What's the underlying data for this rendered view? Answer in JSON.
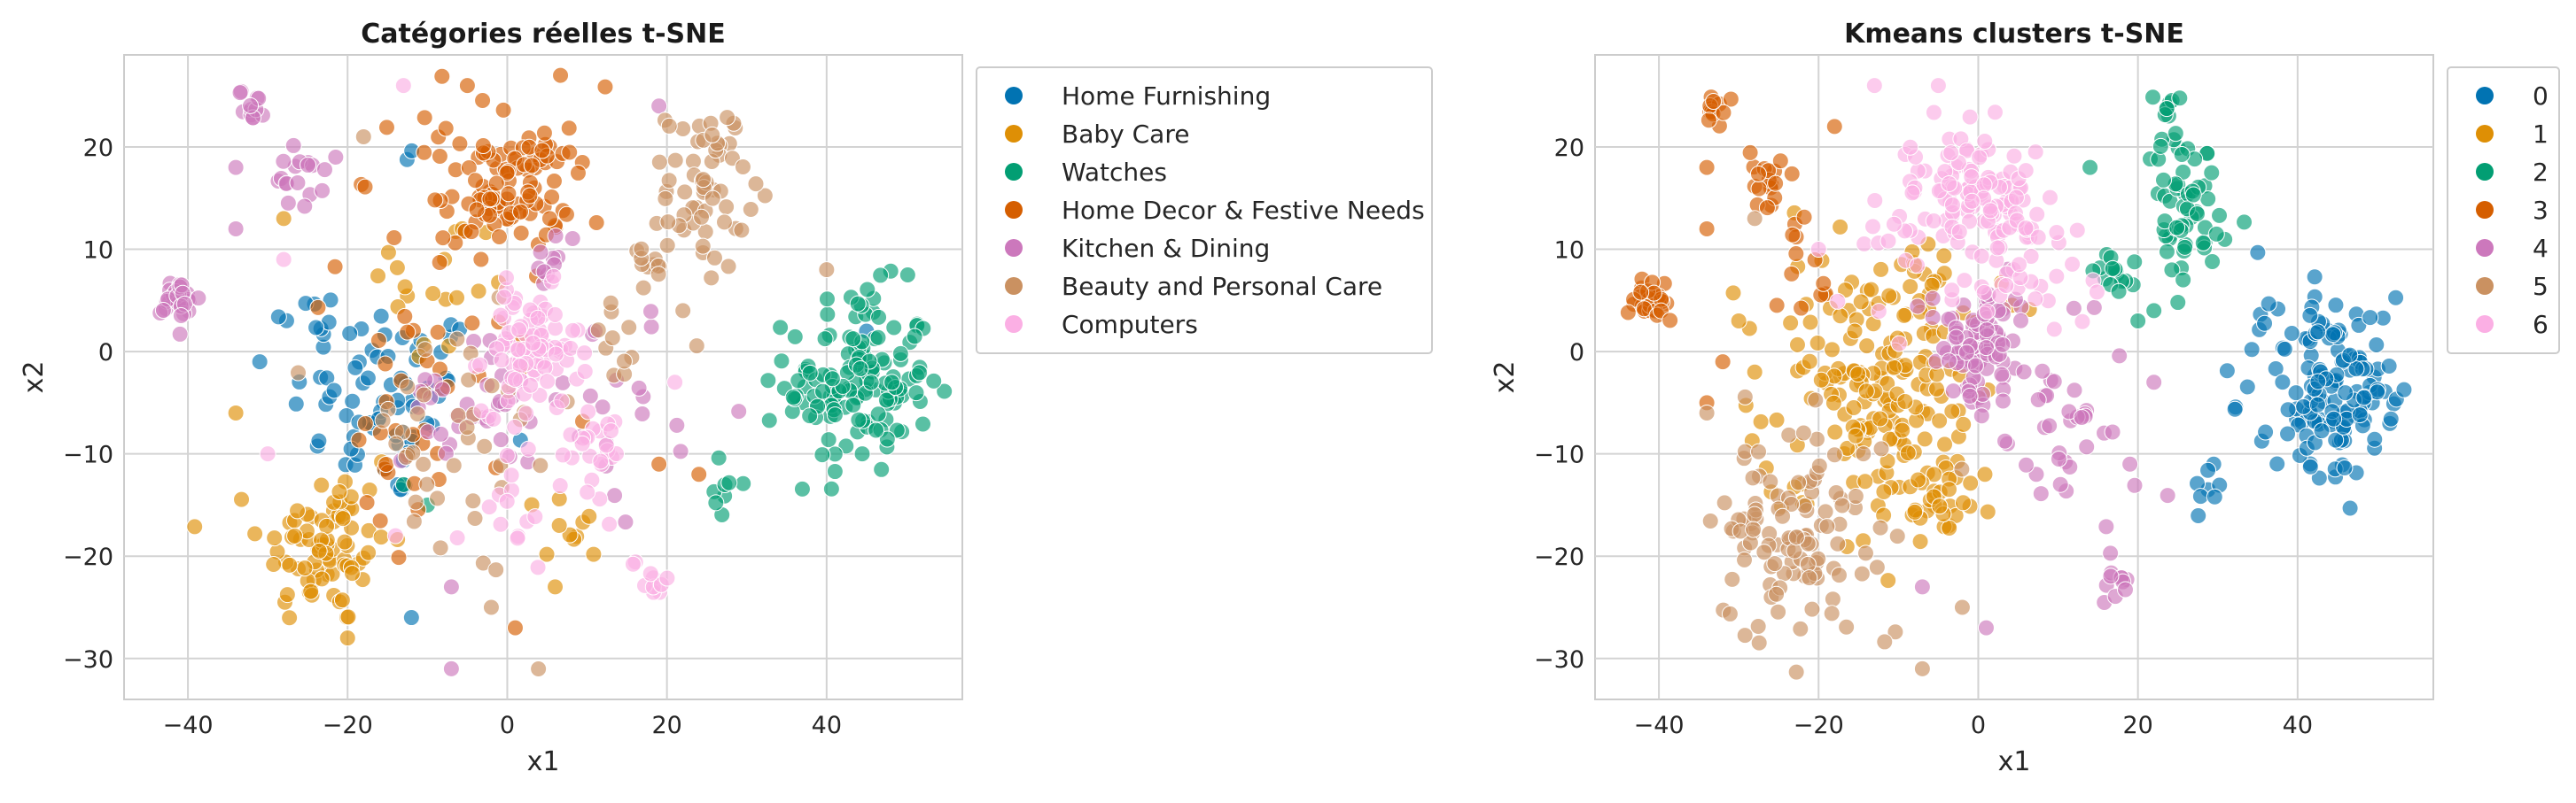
{
  "chart_data": [
    {
      "type": "scatter",
      "title": "Catégories réelles t-SNE",
      "xlabel": "x1",
      "ylabel": "x2",
      "xlim": [
        -48,
        57
      ],
      "ylim": [
        -34,
        29
      ],
      "xticks": [
        -40,
        -20,
        0,
        20,
        40
      ],
      "yticks": [
        -30,
        -20,
        -10,
        0,
        10,
        20
      ],
      "grid": true,
      "legend_position": "outside-right",
      "series": [
        {
          "name": "Home Furnishing",
          "color": "#0173b2",
          "clusters": [
            [
              -15,
              -5,
              6,
              5,
              70
            ],
            [
              -25,
              4,
              2,
              1.5,
              8
            ],
            [
              -12,
              19,
              0.5,
              0.5,
              2
            ]
          ],
          "points": [
            [
              -12,
              -26
            ],
            [
              45,
              2
            ],
            [
              -31,
              -1
            ]
          ]
        },
        {
          "name": "Baby Care",
          "color": "#de8f05",
          "clusters": [
            [
              -23,
              -19,
              4,
              4,
              80
            ],
            [
              -8,
              6,
              5,
              4,
              20
            ],
            [
              8,
              -17,
              2,
              2,
              10
            ]
          ],
          "points": [
            [
              -34,
              -6
            ],
            [
              -28,
              13
            ],
            [
              -20,
              -28
            ],
            [
              6,
              -23
            ]
          ]
        },
        {
          "name": "Watches",
          "color": "#029e73",
          "clusters": [
            [
              44,
              -3,
              4.5,
              4.5,
              140
            ],
            [
              28,
              -13,
              1,
              1.5,
              8
            ]
          ],
          "points": [
            [
              -13,
              -13
            ],
            [
              -10,
              -15
            ]
          ]
        },
        {
          "name": "Home Decor & Festive Needs",
          "color": "#d55e00",
          "clusters": [
            [
              0,
              16,
              4,
              3,
              90
            ],
            [
              -5,
              10,
              8,
              8,
              40
            ],
            [
              -12,
              -10,
              6,
              6,
              25
            ]
          ],
          "points": [
            [
              19,
              -11
            ],
            [
              24,
              -12
            ],
            [
              1,
              -27
            ],
            [
              -5,
              26
            ]
          ]
        },
        {
          "name": "Kitchen & Dining",
          "color": "#cc78bc",
          "clusters": [
            [
              -41,
              5,
              1.2,
              1.2,
              30
            ],
            [
              -32,
              24,
              0.8,
              0.8,
              12
            ],
            [
              -26,
              17,
              1.5,
              1.5,
              18
            ],
            [
              -5,
              -5,
              4,
              3,
              30
            ],
            [
              14,
              -5,
              5,
              6,
              20
            ],
            [
              6,
              9,
              1.5,
              1.5,
              10
            ]
          ],
          "points": [
            [
              -34,
              12
            ],
            [
              -34,
              18
            ],
            [
              -7,
              -31
            ],
            [
              -7,
              -23
            ],
            [
              19,
              24
            ],
            [
              11,
              2
            ]
          ]
        },
        {
          "name": "Beauty and Personal Care",
          "color": "#ca9161",
          "clusters": [
            [
              25,
              16,
              2.5,
              4,
              60
            ],
            [
              17,
              8,
              1.5,
              1.5,
              12
            ],
            [
              -7,
              -10,
              8,
              7,
              40
            ],
            [
              14,
              1,
              2,
              2,
              10
            ]
          ],
          "points": [
            [
              40,
              8
            ],
            [
              -18,
              21
            ],
            [
              22,
              4
            ],
            [
              -2,
              -25
            ]
          ]
        },
        {
          "name": "Computers",
          "color": "#fbafe4",
          "clusters": [
            [
              3,
              0,
              3,
              3,
              90
            ],
            [
              10,
              -9,
              3,
              3,
              25
            ],
            [
              18,
              -22,
              1.2,
              1.2,
              10
            ],
            [
              0,
              -15,
              3,
              3,
              15
            ]
          ],
          "points": [
            [
              -13,
              26
            ],
            [
              21,
              -3
            ],
            [
              -14,
              -18
            ],
            [
              -28,
              9
            ],
            [
              -30,
              -10
            ]
          ]
        }
      ]
    },
    {
      "type": "scatter",
      "title": "Kmeans clusters t-SNE",
      "xlabel": "x1",
      "ylabel": "x2",
      "xlim": [
        -48,
        57
      ],
      "ylim": [
        -34,
        29
      ],
      "xticks": [
        -40,
        -20,
        0,
        20,
        40
      ],
      "yticks": [
        -30,
        -20,
        -10,
        0,
        10,
        20
      ],
      "grid": true,
      "legend_position": "outside-right",
      "series": [
        {
          "name": "0",
          "color": "#0173b2",
          "clusters": [
            [
              44,
              -3,
              4.5,
              4.5,
              150
            ],
            [
              28,
              -13,
              1,
              1.5,
              8
            ]
          ],
          "points": []
        },
        {
          "name": "1",
          "color": "#de8f05",
          "clusters": [
            [
              -12,
              -3,
              6,
              7,
              200
            ],
            [
              -5,
              -15,
              3,
              2,
              20
            ]
          ],
          "points": [
            [
              -28,
              -2
            ],
            [
              -30,
              3
            ]
          ]
        },
        {
          "name": "2",
          "color": "#029e73",
          "clusters": [
            [
              26,
              15,
              2.5,
              4,
              60
            ],
            [
              17,
              8,
              1.5,
              1.5,
              15
            ],
            [
              24,
              24,
              1,
              1,
              8
            ]
          ],
          "points": [
            [
              14,
              18
            ],
            [
              20,
              3
            ],
            [
              22,
              4
            ]
          ]
        },
        {
          "name": "3",
          "color": "#d55e00",
          "clusters": [
            [
              -41,
              5,
              1.2,
              1.2,
              30
            ],
            [
              -33,
              24,
              0.8,
              0.8,
              12
            ],
            [
              -26,
              17,
              1.5,
              1.5,
              18
            ],
            [
              -22,
              8,
              2,
              2,
              12
            ]
          ],
          "points": [
            [
              -34,
              18
            ],
            [
              -34,
              12
            ],
            [
              -32,
              -1
            ],
            [
              -34,
              -5
            ],
            [
              -18,
              22
            ]
          ]
        },
        {
          "name": "4",
          "color": "#cc78bc",
          "clusters": [
            [
              0,
              0,
              3,
              3,
              90
            ],
            [
              10,
              -8,
              5,
              5,
              40
            ],
            [
              18,
              -22,
              1.2,
              1.2,
              10
            ]
          ],
          "points": [
            [
              1,
              -27
            ],
            [
              -7,
              -23
            ],
            [
              22,
              -3
            ],
            [
              19,
              -11
            ]
          ]
        },
        {
          "name": "5",
          "color": "#ca9161",
          "clusters": [
            [
              -22,
              -18,
              5,
              5,
              110
            ]
          ],
          "points": [
            [
              -34,
              -6
            ],
            [
              -28,
              13
            ],
            [
              -7,
              -31
            ],
            [
              -2,
              -25
            ]
          ]
        },
        {
          "name": "6",
          "color": "#fbafe4",
          "clusters": [
            [
              0,
              16,
              4,
              3,
              100
            ],
            [
              6,
              8,
              4,
              3,
              40
            ],
            [
              -10,
              12,
              4,
              4,
              20
            ]
          ],
          "points": [
            [
              -13,
              26
            ],
            [
              -5,
              26
            ],
            [
              -20,
              10
            ]
          ]
        }
      ]
    }
  ]
}
